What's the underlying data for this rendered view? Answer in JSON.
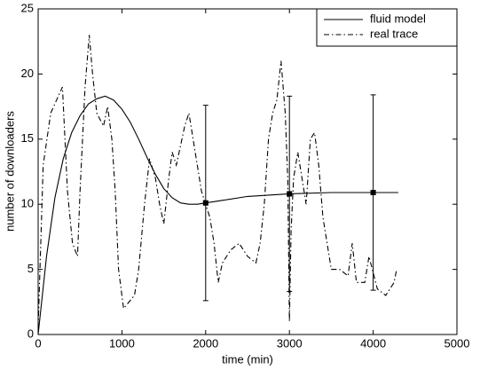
{
  "chart_data": {
    "type": "line",
    "xlabel": "time (min)",
    "ylabel": "number of downloaders",
    "xlim": [
      0,
      5000
    ],
    "xticks": [
      0,
      1000,
      2000,
      3000,
      4000,
      5000
    ],
    "ylim": [
      0,
      25
    ],
    "yticks": [
      0,
      5,
      10,
      15,
      20,
      25
    ],
    "grid": false,
    "legend": "upper right",
    "series": [
      {
        "name": "fluid model",
        "color": "#000000",
        "linestyle": "solid",
        "x": [
          0,
          100,
          200,
          300,
          400,
          500,
          600,
          700,
          800,
          900,
          1000,
          1100,
          1200,
          1300,
          1400,
          1500,
          1600,
          1700,
          1800,
          1900,
          2000,
          2200,
          2500,
          3000,
          3500,
          4000,
          4300
        ],
        "values": [
          0,
          6,
          10.5,
          13.5,
          15.5,
          16.8,
          17.7,
          18.1,
          18.3,
          18.0,
          17.3,
          16.3,
          15,
          13.6,
          12.3,
          11.2,
          10.5,
          10.1,
          10.0,
          10.0,
          10.1,
          10.3,
          10.6,
          10.8,
          10.9,
          10.9,
          10.9
        ]
      },
      {
        "name": "real trace",
        "color": "#000000",
        "linestyle": "dashdot",
        "x": [
          0,
          60,
          150,
          290,
          350,
          410,
          470,
          500,
          560,
          610,
          650,
          700,
          780,
          830,
          880,
          920,
          960,
          1020,
          1150,
          1200,
          1270,
          1330,
          1400,
          1450,
          1500,
          1560,
          1600,
          1650,
          1750,
          1800,
          1850,
          1900,
          1950,
          2000,
          2050,
          2100,
          2150,
          2200,
          2300,
          2400,
          2500,
          2600,
          2650,
          2700,
          2750,
          2800,
          2850,
          2900,
          2950,
          2980,
          3000,
          3020,
          3050,
          3100,
          3150,
          3200,
          3250,
          3300,
          3350,
          3400,
          3450,
          3500,
          3600,
          3700,
          3750,
          3800,
          3900,
          3950,
          4050,
          4150,
          4250,
          4280
        ],
        "values": [
          0.5,
          13,
          17,
          19,
          11,
          7,
          6,
          11,
          19,
          23,
          20,
          17,
          16,
          17.5,
          15,
          11,
          5,
          2,
          3,
          5,
          10,
          13.5,
          12,
          10,
          8.5,
          12,
          14,
          13,
          16,
          17,
          15,
          13,
          11,
          10,
          9,
          7,
          4,
          5.5,
          6.5,
          7,
          6,
          5.5,
          7,
          10,
          15,
          17,
          18,
          21,
          17,
          12,
          1,
          8,
          12,
          14,
          12,
          10,
          15,
          15.5,
          13,
          9,
          7,
          5,
          5,
          4.5,
          7,
          4,
          4,
          6,
          3.5,
          3,
          4,
          5
        ]
      }
    ],
    "error_bars": {
      "x": [
        2000,
        3000,
        4000
      ],
      "values": [
        10.1,
        10.8,
        10.9
      ],
      "errors": [
        7.5,
        7.5,
        7.5
      ],
      "color": "#000000"
    }
  }
}
